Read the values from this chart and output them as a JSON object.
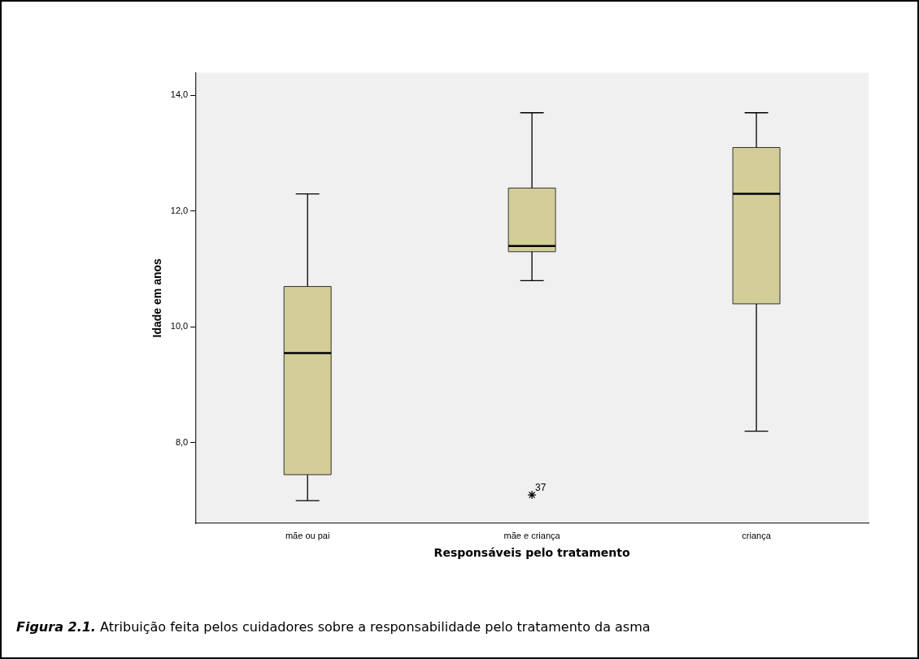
{
  "chart_data": {
    "type": "box",
    "xlabel": "Responsáveis pelo tratamento",
    "ylabel": "Idade em anos",
    "categories": [
      "mãe ou pai",
      "mãe e criança",
      "criança"
    ],
    "color": "#d3ce98",
    "boxes": [
      {
        "low": 7.0,
        "q1": 7.45,
        "median": 9.55,
        "q3": 10.7,
        "high": 12.3
      },
      {
        "low": 10.8,
        "q1": 11.3,
        "median": 11.4,
        "q3": 12.4,
        "high": 13.7,
        "outliers": [
          7.1
        ]
      },
      {
        "low": 8.2,
        "q1": 10.4,
        "median": 12.3,
        "q3": 13.1,
        "high": 13.7
      }
    ],
    "ylim": [
      6.61,
      14.39
    ],
    "yticks": [
      {
        "value": 8,
        "label": "8,0"
      },
      {
        "value": 10,
        "label": "10,0"
      },
      {
        "value": 12,
        "label": "12,0"
      },
      {
        "value": 14,
        "label": "14,0"
      }
    ],
    "grid": false,
    "legend": false,
    "marker": "star",
    "annotations": [
      "37",
      "Figura 2.1. Atribuição feita pelos cuidadores sobre a responsabilidade pelo tratamento da asma"
    ]
  }
}
